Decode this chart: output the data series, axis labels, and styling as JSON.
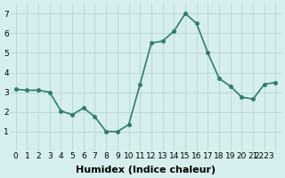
{
  "x": [
    0,
    1,
    2,
    3,
    4,
    5,
    6,
    7,
    8,
    9,
    10,
    11,
    12,
    13,
    14,
    15,
    16,
    17,
    18,
    19,
    20,
    21,
    22,
    23
  ],
  "y": [
    3.15,
    3.1,
    3.1,
    3.0,
    2.05,
    1.85,
    2.2,
    1.75,
    1.0,
    1.0,
    1.35,
    3.4,
    5.5,
    5.6,
    6.1,
    7.0,
    6.5,
    5.0,
    3.7,
    3.3,
    2.75,
    2.65,
    3.4,
    3.5
  ],
  "line_color": "#2e7d6e",
  "marker": "o",
  "marker_size": 2.5,
  "linewidth": 1.2,
  "xlabel": "Humidex (Indice chaleur)",
  "xlabel_fontsize": 8,
  "xlabel_fontweight": "bold",
  "ylim": [
    0,
    7.5
  ],
  "xlim": [
    -0.5,
    23.5
  ],
  "yticks": [
    1,
    2,
    3,
    4,
    5,
    6,
    7
  ],
  "xtick_labels": [
    "0",
    "1",
    "2",
    "3",
    "4",
    "5",
    "6",
    "7",
    "8",
    "9",
    "10",
    "11",
    "12",
    "13",
    "14",
    "15",
    "16",
    "17",
    "18",
    "19",
    "20",
    "21",
    "2223",
    ""
  ],
  "tick_fontsize": 6.5,
  "background_color": "#d6eeed",
  "grid_color": "#b0d0d0",
  "grid_linewidth": 0.5
}
